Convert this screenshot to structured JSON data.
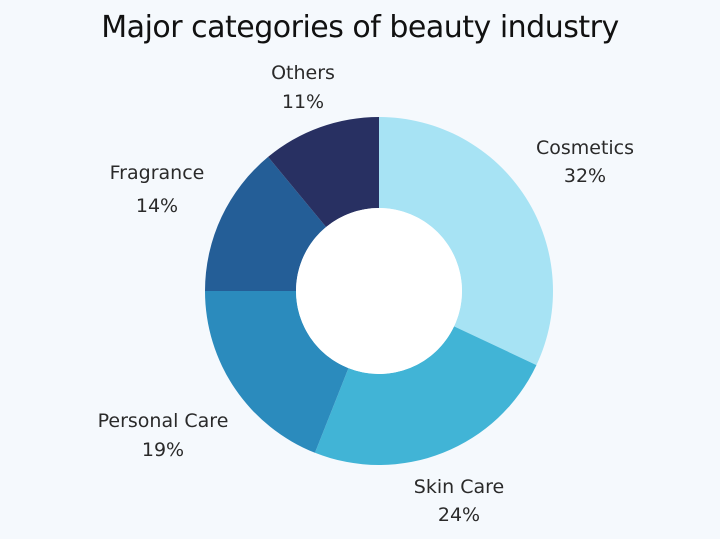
{
  "chart_data": {
    "type": "pie",
    "title": "Major categories of beauty industry",
    "donut": true,
    "categories": [
      "Cosmetics",
      "Skin Care",
      "Personal Care",
      "Fragrance",
      "Others"
    ],
    "values": [
      32,
      24,
      19,
      14,
      11
    ],
    "value_labels": [
      "32%",
      "24%",
      "19%",
      "14%",
      "11%"
    ],
    "unit": "%",
    "colors": [
      "#a7e3f4",
      "#41b4d6",
      "#2b8bbd",
      "#245e97",
      "#283062"
    ],
    "start": "12 o'clock",
    "direction": "clockwise",
    "legend": "none (labels beside slices)"
  }
}
